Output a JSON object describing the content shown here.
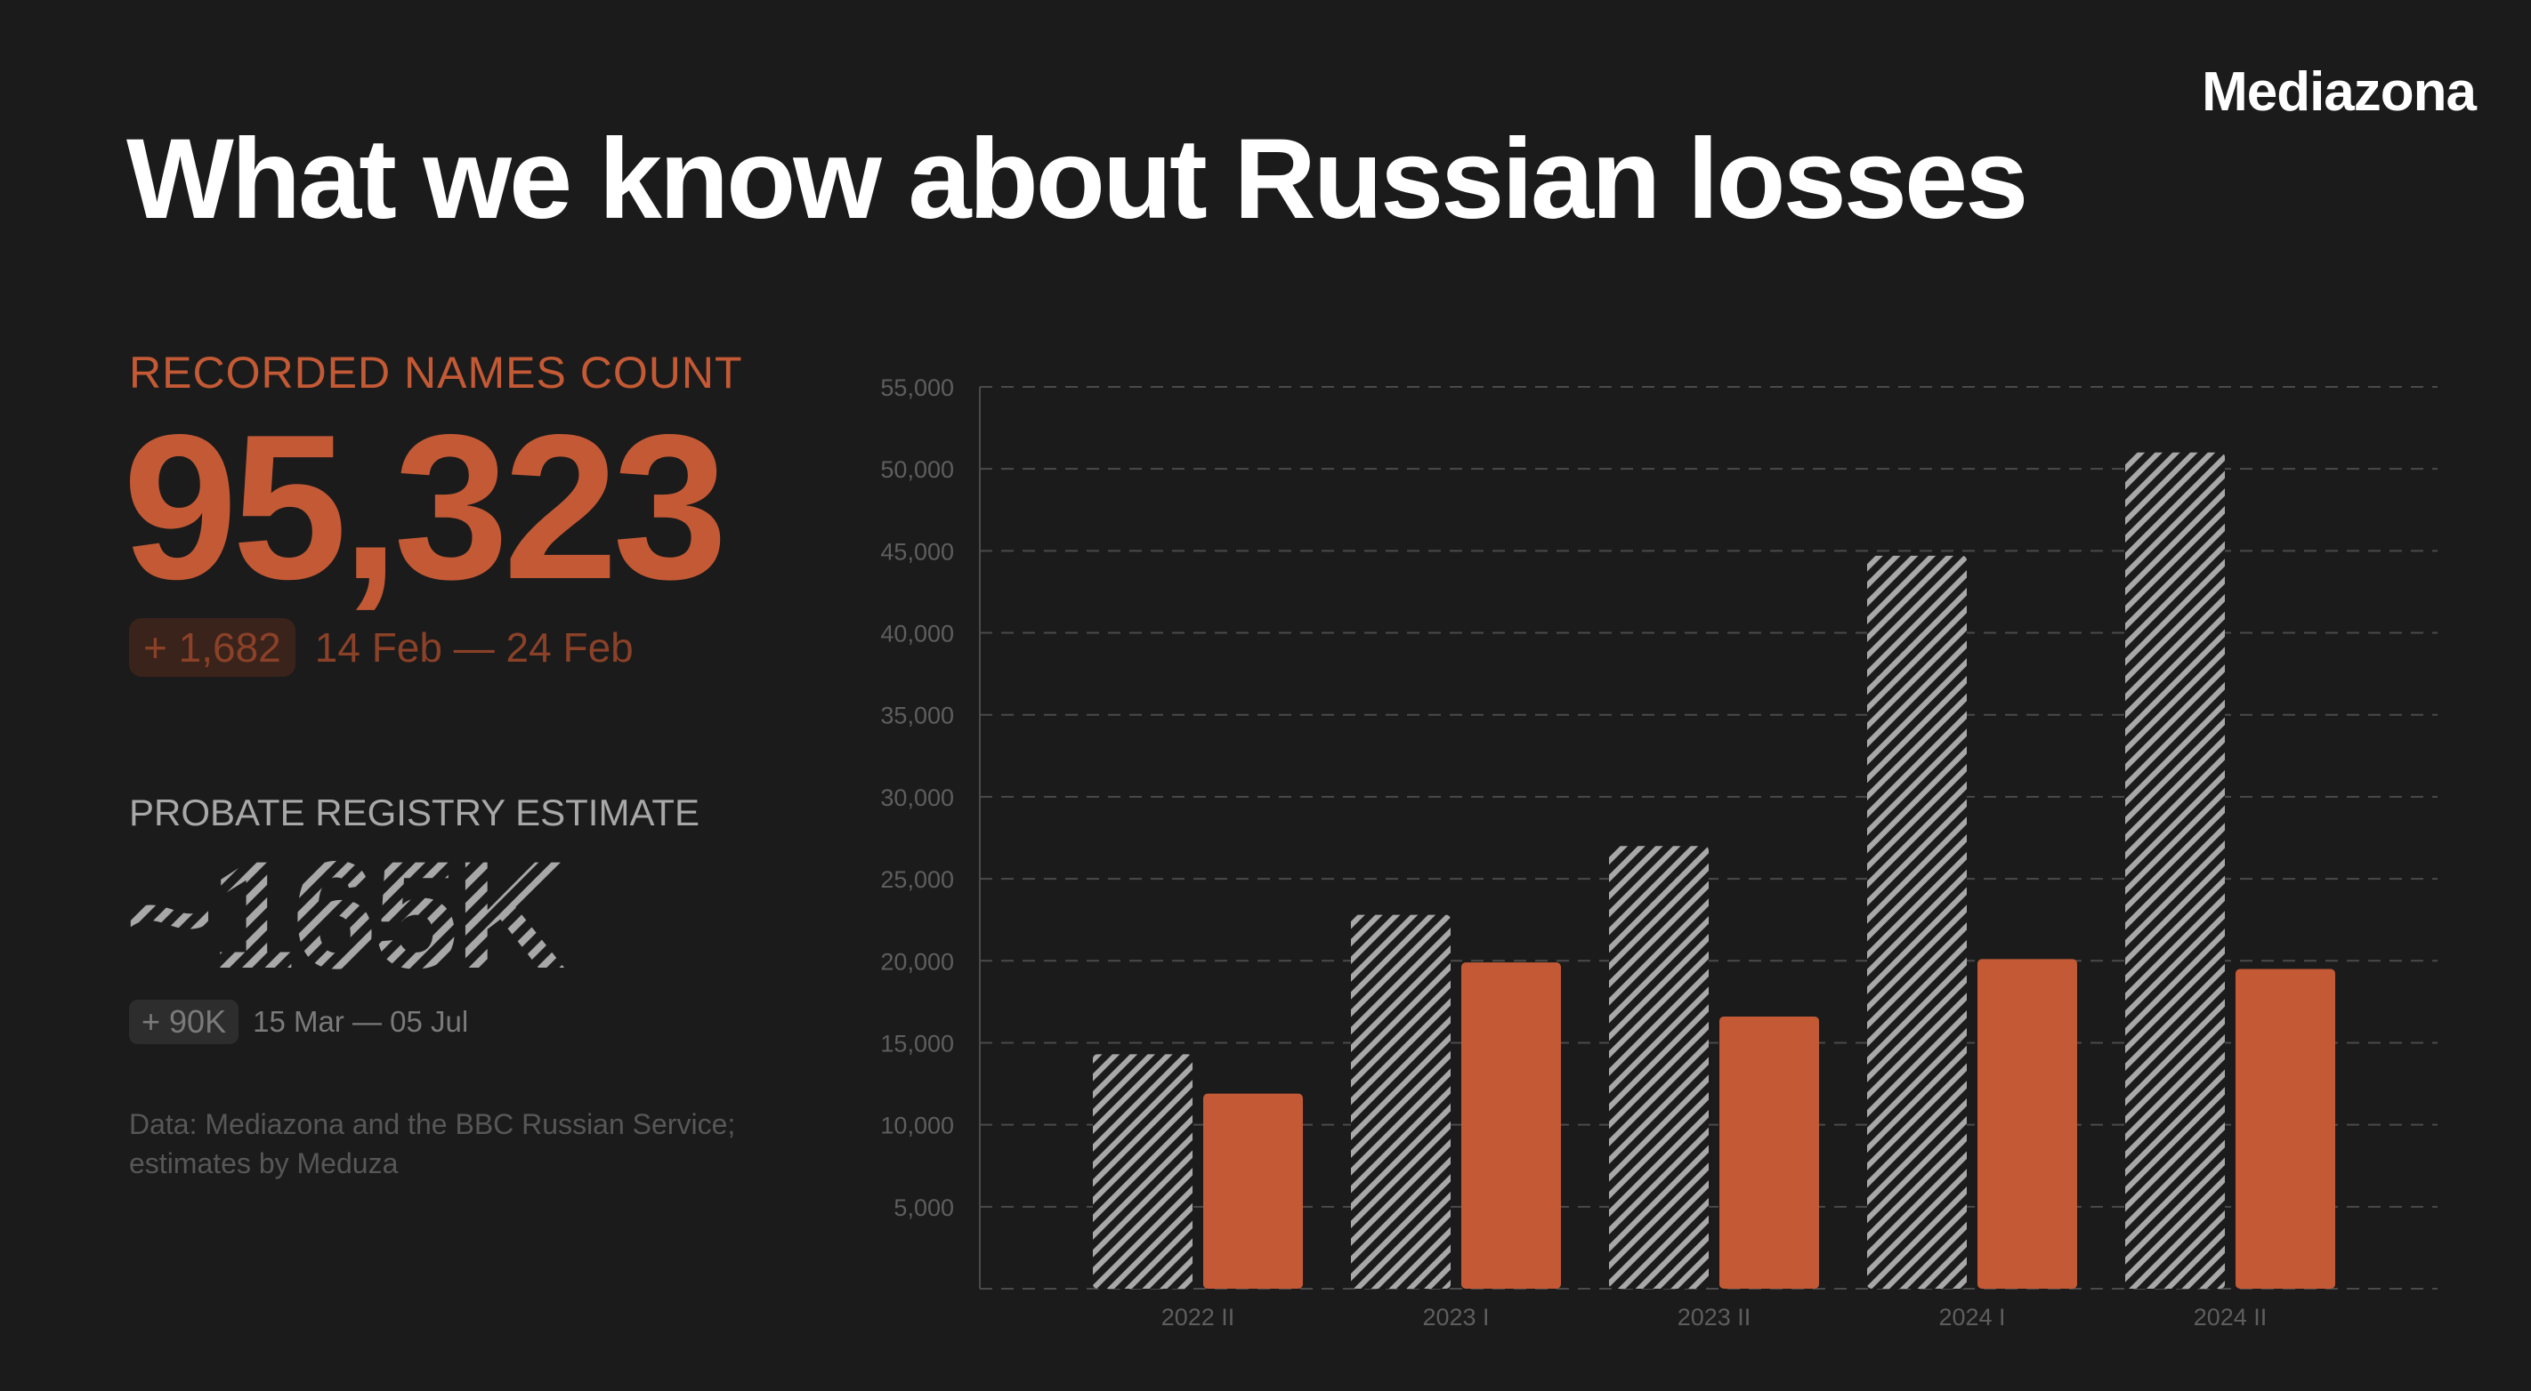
{
  "brand": "Mediazona",
  "title": "What we know about Russian losses",
  "recorded": {
    "label": "RECORDED NAMES COUNT",
    "value": "95,323",
    "delta": "+ 1,682",
    "period": "14 Feb — 24 Feb"
  },
  "probate": {
    "label": "PROBATE REGISTRY ESTIMATE",
    "value": "~165K",
    "delta": "+ 90K",
    "period": "15 Mar — 05 Jul"
  },
  "source": "Data: Mediazona and the BBC Russian Service; estimates by Meduza",
  "colors": {
    "background": "#1b1b1b",
    "accent": "#c45a35",
    "hatch": "#a8a8a8",
    "grid": "#4a4a4a"
  },
  "chart_data": {
    "type": "bar",
    "categories": [
      "2022 II",
      "2023 I",
      "2023 II",
      "2024 I",
      "2024 II"
    ],
    "series": [
      {
        "style": "hatched-gray",
        "values": [
          14300,
          22800,
          27000,
          44700,
          51000
        ]
      },
      {
        "style": "solid-orange",
        "values": [
          11900,
          19900,
          16600,
          20100,
          19500
        ]
      }
    ],
    "yticks": [
      5000,
      10000,
      15000,
      20000,
      25000,
      30000,
      35000,
      40000,
      45000,
      50000,
      55000
    ],
    "ytick_labels": [
      "5,000",
      "10,000",
      "15,000",
      "20,000",
      "25,000",
      "30,000",
      "35,000",
      "40,000",
      "45,000",
      "50,000",
      "55,000"
    ],
    "ylim": [
      0,
      55000
    ],
    "grid": "horizontal dashed"
  }
}
